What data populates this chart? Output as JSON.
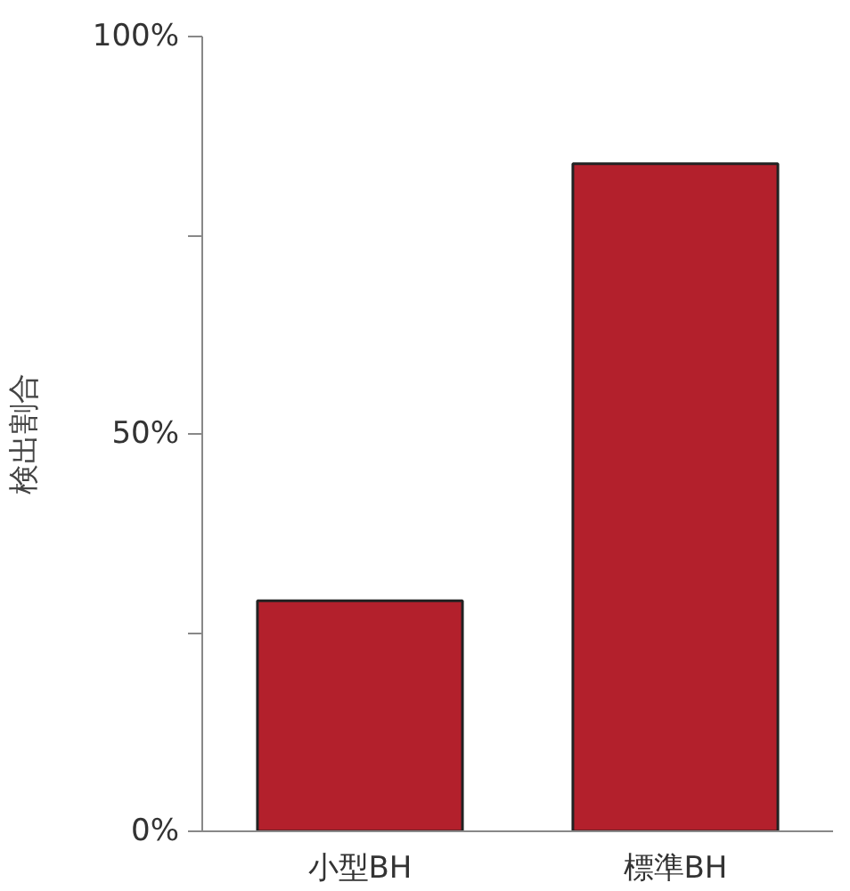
{
  "chart_data": {
    "type": "bar",
    "ylabel": "検出割合",
    "categories": [
      "小型BH",
      "標準BH"
    ],
    "values": [
      29,
      84
    ],
    "color": "#b3202c",
    "ylim": [
      0,
      100
    ],
    "yticks": [
      {
        "value": 0,
        "label": "0%"
      },
      {
        "value": 25,
        "label": null
      },
      {
        "value": 50,
        "label": "50%"
      },
      {
        "value": 75,
        "label": null
      },
      {
        "value": 100,
        "label": "100%"
      }
    ],
    "grid": false
  }
}
